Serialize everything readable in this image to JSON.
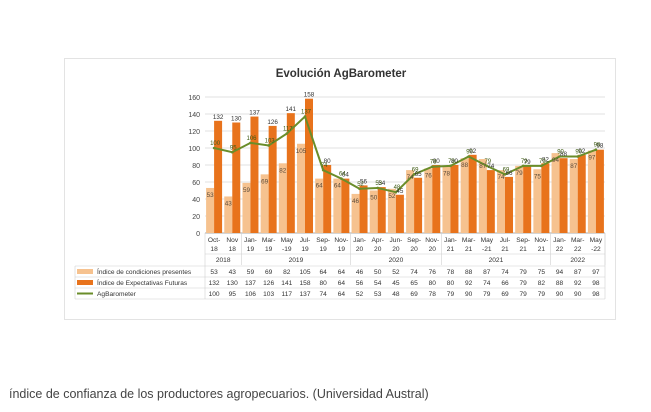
{
  "caption": "índice de confianza de los productores agropecuarios. (Universidad Austral)",
  "chart_data": {
    "type": "bar",
    "title": "Evolución AgBarometer",
    "ylim": [
      0,
      160
    ],
    "yticks": [
      0,
      20,
      40,
      60,
      80,
      100,
      120,
      140,
      160
    ],
    "grid": true,
    "categories": [
      [
        "Oct-",
        "18"
      ],
      [
        "Nov",
        "18"
      ],
      [
        "Jan-",
        "19"
      ],
      [
        "Mar-",
        "19"
      ],
      [
        "May",
        "-19"
      ],
      [
        "Jul-",
        "19"
      ],
      [
        "Sep-",
        "19"
      ],
      [
        "Nov-",
        "19"
      ],
      [
        "Jan-",
        "20"
      ],
      [
        "Apr-",
        "20"
      ],
      [
        "Jun-",
        "20"
      ],
      [
        "Sep-",
        "20"
      ],
      [
        "Nov-",
        "20"
      ],
      [
        "Jan-",
        "21"
      ],
      [
        "Mar-",
        "21"
      ],
      [
        "May",
        "-21"
      ],
      [
        "Jul-",
        "21"
      ],
      [
        "Sep-",
        "21"
      ],
      [
        "Nov-",
        "21"
      ],
      [
        "Jan-",
        "22"
      ],
      [
        "Mar-",
        "22"
      ],
      [
        "May",
        "-22"
      ]
    ],
    "year_groups": [
      {
        "label": "2018",
        "start": 0,
        "end": 1
      },
      {
        "label": "2019",
        "start": 2,
        "end": 7
      },
      {
        "label": "2020",
        "start": 8,
        "end": 12
      },
      {
        "label": "2021",
        "start": 13,
        "end": 18
      },
      {
        "label": "2022",
        "start": 19,
        "end": 21
      }
    ],
    "series": [
      {
        "name": "Índice de condiciones presentes",
        "kind": "bar",
        "color": "#f6c28f",
        "values": [
          53,
          43,
          59,
          69,
          82,
          105,
          64,
          64,
          46,
          50,
          52,
          74,
          76,
          78,
          88,
          87,
          74,
          79,
          75,
          94,
          87,
          97
        ]
      },
      {
        "name": "Índice de Expectativas Futuras",
        "kind": "bar",
        "color": "#e8731c",
        "values": [
          132,
          130,
          137,
          126,
          141,
          158,
          80,
          64,
          56,
          54,
          45,
          65,
          80,
          80,
          92,
          74,
          66,
          79,
          82,
          88,
          92,
          98
        ]
      },
      {
        "name": "AgBarometer",
        "kind": "line",
        "color": "#6a8d2a",
        "values": [
          100,
          95,
          106,
          103,
          117,
          137,
          74,
          64,
          52,
          53,
          48,
          69,
          78,
          79,
          90,
          79,
          69,
          79,
          79,
          90,
          90,
          98
        ]
      }
    ]
  }
}
